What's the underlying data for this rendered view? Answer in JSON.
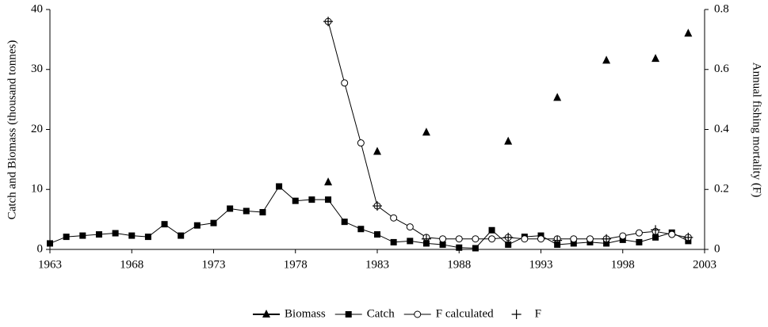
{
  "chart_data": {
    "type": "line",
    "ylabel": "Catch and Biomass (thousand tonnes)",
    "y2label": "Annual fishing mortality (F)",
    "x": [
      1963,
      1964,
      1965,
      1966,
      1967,
      1968,
      1969,
      1970,
      1971,
      1972,
      1973,
      1974,
      1975,
      1976,
      1977,
      1978,
      1979,
      1980,
      1981,
      1982,
      1983,
      1984,
      1985,
      1986,
      1987,
      1988,
      1989,
      1990,
      1991,
      1992,
      1993,
      1994,
      1995,
      1996,
      1997,
      1998,
      1999,
      2000,
      2001,
      2002
    ],
    "xlim": [
      1963,
      2003
    ],
    "xticks": [
      1963,
      1968,
      1973,
      1978,
      1983,
      1988,
      1993,
      1998,
      2003
    ],
    "ylim": [
      0,
      40
    ],
    "yticks": [
      0,
      10,
      20,
      30,
      40
    ],
    "y2lim": [
      0,
      0.8
    ],
    "y2ticks": [
      0,
      0.2,
      0.4,
      0.6,
      0.8
    ],
    "legend": "bottom",
    "series": [
      {
        "name": "Biomass",
        "color": "#000000",
        "marker": "triangle",
        "line": true,
        "values": [
          null,
          null,
          null,
          null,
          null,
          null,
          null,
          null,
          null,
          null,
          null,
          null,
          null,
          null,
          null,
          null,
          null,
          11.2,
          null,
          null,
          16.3,
          null,
          null,
          19.5,
          null,
          null,
          null,
          null,
          18.0,
          null,
          null,
          25.3,
          null,
          null,
          31.5,
          null,
          null,
          31.8,
          null,
          36.0
        ]
      },
      {
        "name": "Catch",
        "color": "#000000",
        "marker": "square",
        "line": true,
        "values": [
          1.0,
          2.1,
          2.3,
          2.5,
          2.7,
          2.3,
          2.1,
          4.2,
          2.3,
          4.0,
          4.4,
          6.8,
          6.4,
          6.2,
          10.5,
          8.1,
          8.3,
          8.3,
          4.6,
          3.4,
          2.5,
          1.2,
          1.4,
          1.0,
          0.8,
          0.3,
          0.2,
          3.2,
          0.8,
          2.1,
          2.3,
          0.8,
          1.0,
          1.2,
          1.0,
          1.6,
          1.2,
          2.0,
          2.8,
          1.4
        ]
      },
      {
        "name": "F calculated",
        "color": "#000000",
        "marker": "circle",
        "line": true,
        "axis": "y2",
        "values": [
          null,
          null,
          null,
          null,
          null,
          null,
          null,
          null,
          null,
          null,
          null,
          null,
          null,
          null,
          null,
          null,
          null,
          0.76,
          0.555,
          0.355,
          0.145,
          0.105,
          0.075,
          0.04,
          0.035,
          0.035,
          0.035,
          0.035,
          0.04,
          0.035,
          0.035,
          0.035,
          0.035,
          0.035,
          0.035,
          0.045,
          0.055,
          0.06,
          0.05,
          0.04
        ]
      },
      {
        "name": "F",
        "color": "#000000",
        "marker": "plus",
        "line": false,
        "axis": "y2",
        "values": [
          null,
          null,
          null,
          null,
          null,
          null,
          null,
          null,
          null,
          null,
          null,
          null,
          null,
          null,
          null,
          null,
          null,
          0.76,
          null,
          null,
          0.145,
          null,
          null,
          0.035,
          null,
          null,
          null,
          null,
          0.04,
          null,
          null,
          0.03,
          null,
          null,
          0.035,
          null,
          null,
          0.065,
          null,
          0.04
        ]
      }
    ]
  }
}
